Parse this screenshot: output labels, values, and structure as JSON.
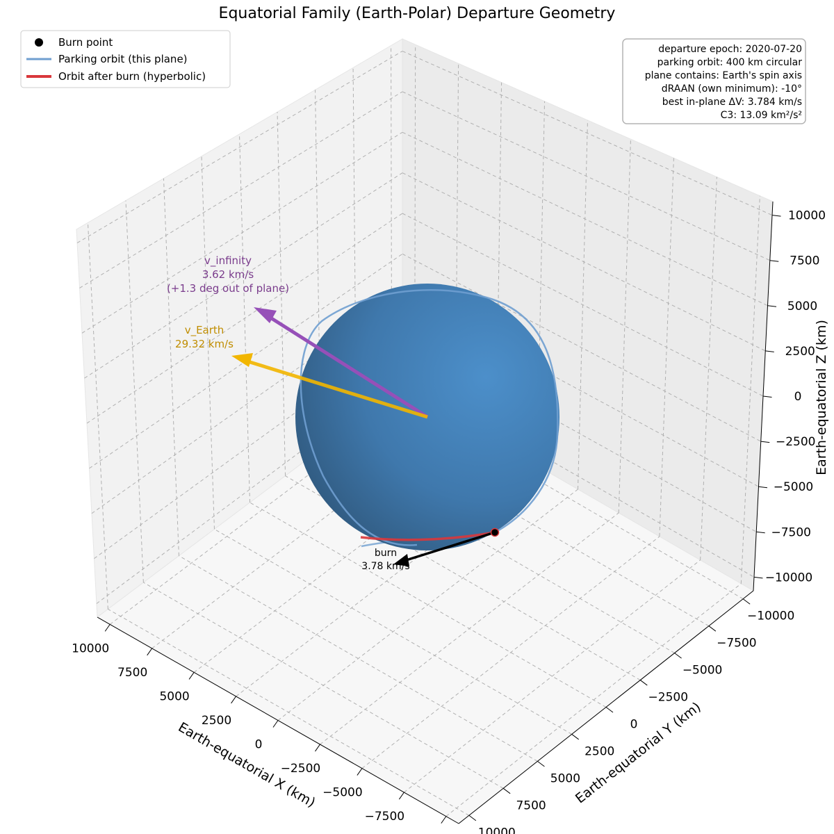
{
  "chart_data": {
    "type": "3d-line",
    "title": "Equatorial Family (Earth-Polar) Departure Geometry",
    "xlabel": "Earth-equatorial X (km)",
    "ylabel": "Earth-equatorial Y (km)",
    "zlabel": "Earth-equatorial Z (km)",
    "xticks": [
      "10000",
      "7500",
      "5000",
      "2500",
      "0",
      "−2500",
      "−5000",
      "−7500",
      "−10000"
    ],
    "yticks": [
      "−10000",
      "−7500",
      "−5000",
      "−2500",
      "0",
      "2500",
      "5000",
      "7500",
      "10000"
    ],
    "zticks": [
      "10000",
      "7500",
      "5000",
      "2500",
      "0",
      "−2500",
      "−5000",
      "−7500",
      "−10000"
    ],
    "xlim": [
      -10000,
      10000
    ],
    "ylim": [
      -10000,
      10000
    ],
    "zlim": [
      -10000,
      10000
    ],
    "grid": true,
    "legend": {
      "placement": "top-left",
      "entries": [
        {
          "label": "Burn point",
          "color": "#000000",
          "marker": "dot"
        },
        {
          "label": "Parking orbit (this plane)",
          "color": "#6f9fd0",
          "marker": "line"
        },
        {
          "label": "Orbit after burn (hyperbolic)",
          "color": "#d9373b",
          "marker": "line"
        }
      ]
    },
    "info_box": [
      "departure epoch: 2020-07-20",
      "parking orbit: 400 km circular",
      "plane contains: Earth's spin axis",
      "dRAAN (own minimum): -10°",
      "best in-plane ΔV: 3.784 km/s",
      "C3: 13.09 km²/s²"
    ],
    "earth": {
      "radius_km": 6378,
      "color": "#3d77ab"
    },
    "parking_orbit_radius_km": 6778,
    "vectors": {
      "v_infinity": {
        "label": "v_infinity",
        "value": "3.62 km/s",
        "note": "(+1.3 deg out of plane)",
        "color": "#9650b8",
        "text_color": "#7a3c8c"
      },
      "v_earth": {
        "label": "v_Earth",
        "value": "29.32 km/s",
        "color": "#f2b600",
        "text_color": "#c08d00"
      },
      "burn": {
        "label": "burn",
        "value": "3.78 km/s",
        "color": "#000000"
      }
    }
  }
}
